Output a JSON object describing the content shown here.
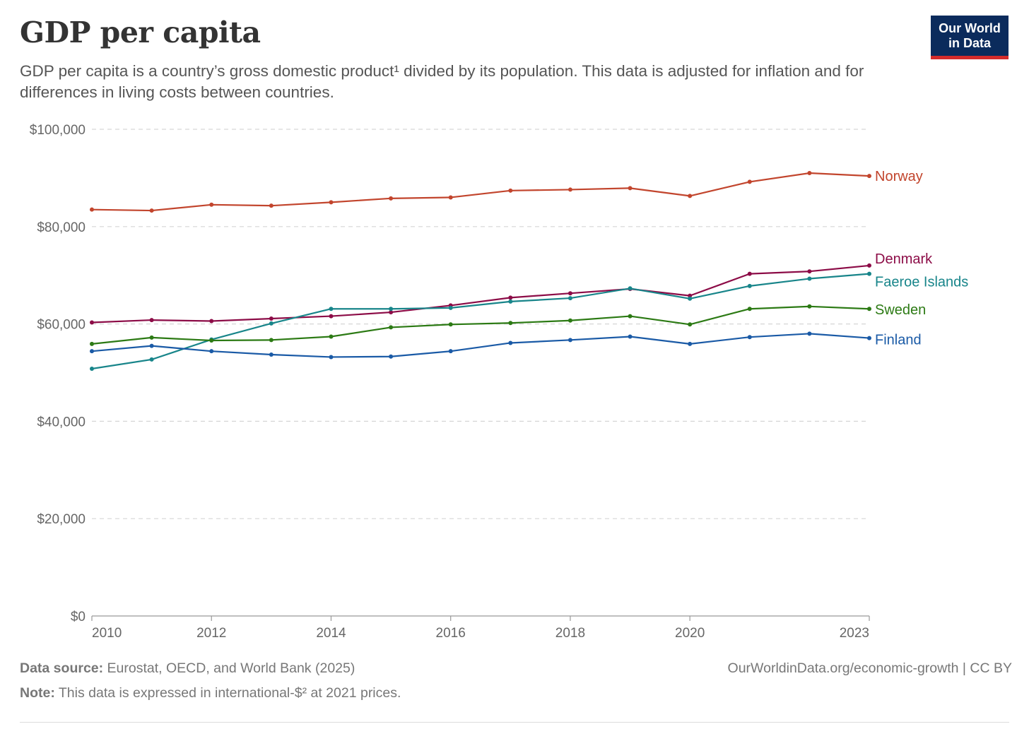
{
  "header": {
    "title": "GDP per capita",
    "subtitle": "GDP per capita is a country’s gross domestic product¹ divided by its population. This data is adjusted for inflation and for differences in living costs between countries.",
    "logo_line1": "Our World",
    "logo_line2": "in Data"
  },
  "footer": {
    "source_label": "Data source:",
    "source_text": " Eurostat, OECD, and World Bank (2025)",
    "note_label": "Note:",
    "note_text": " This data is expressed in international-$² at 2021 prices.",
    "url": "OurWorldinData.org/economic-growth",
    "license": " | CC BY"
  },
  "chart_data": {
    "type": "line",
    "x": [
      2010,
      2011,
      2012,
      2013,
      2014,
      2015,
      2016,
      2017,
      2018,
      2019,
      2020,
      2021,
      2022,
      2023
    ],
    "x_ticks": [
      "2010",
      "2012",
      "2014",
      "2016",
      "2018",
      "2020",
      "2023"
    ],
    "x_tick_values": [
      2010,
      2012,
      2014,
      2016,
      2018,
      2020,
      2023
    ],
    "y_ticks": [
      "$0",
      "$20,000",
      "$40,000",
      "$60,000",
      "$80,000",
      "$100,000"
    ],
    "y_tick_values": [
      0,
      20000,
      40000,
      60000,
      80000,
      100000
    ],
    "ylim": [
      0,
      100000
    ],
    "xlim": [
      2010,
      2023
    ],
    "grid": "horizontal dashed",
    "series": [
      {
        "name": "Norway",
        "color": "#c2452d",
        "values": [
          83500,
          83300,
          84500,
          84300,
          85000,
          85800,
          86000,
          87400,
          87600,
          87900,
          86300,
          89200,
          91000,
          90400
        ]
      },
      {
        "name": "Denmark",
        "color": "#8c0c47",
        "values": [
          60300,
          60800,
          60600,
          61100,
          61600,
          62400,
          63800,
          65400,
          66300,
          67200,
          65800,
          70300,
          70800,
          72000
        ]
      },
      {
        "name": "Faeroe Islands",
        "color": "#18858a",
        "values": [
          50800,
          52700,
          56800,
          60100,
          63100,
          63100,
          63300,
          64600,
          65300,
          67300,
          65200,
          67800,
          69300,
          70300
        ]
      },
      {
        "name": "Sweden",
        "color": "#2c7a14",
        "values": [
          55900,
          57200,
          56600,
          56700,
          57400,
          59300,
          59900,
          60200,
          60700,
          61600,
          59900,
          63100,
          63600,
          63100
        ]
      },
      {
        "name": "Finland",
        "color": "#1a5aa6",
        "values": [
          54400,
          55500,
          54400,
          53700,
          53200,
          53300,
          54400,
          56100,
          56700,
          57400,
          55900,
          57300,
          58000,
          57100
        ]
      }
    ]
  }
}
